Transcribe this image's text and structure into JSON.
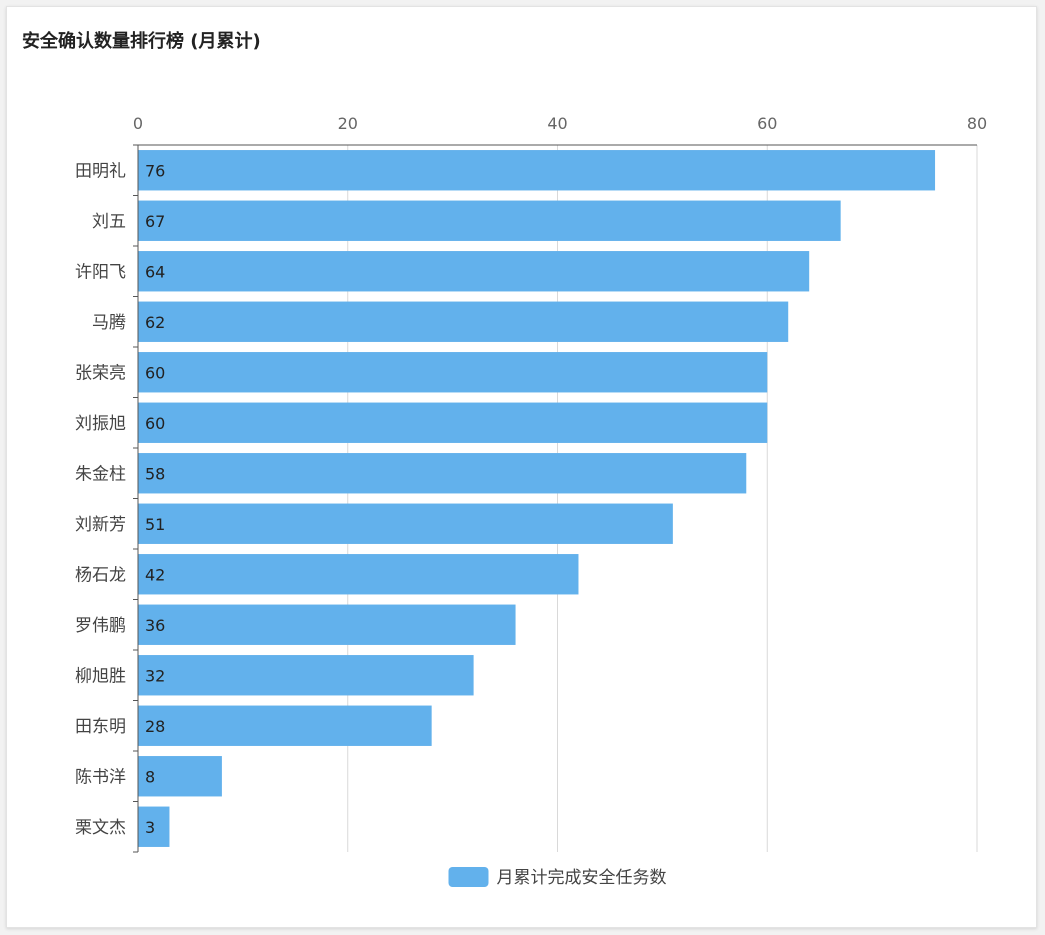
{
  "title": "安全确认数量排行榜 (月累计)",
  "chart_data": {
    "type": "bar",
    "orientation": "horizontal",
    "categories": [
      "田明礼",
      "刘五",
      "许阳飞",
      "马腾",
      "张荣亮",
      "刘振旭",
      "朱金柱",
      "刘新芳",
      "杨石龙",
      "罗伟鹏",
      "柳旭胜",
      "田东明",
      "陈书洋",
      "栗文杰"
    ],
    "series": [
      {
        "name": "月累计完成安全任务数",
        "values": [
          76,
          67,
          64,
          62,
          60,
          60,
          58,
          51,
          42,
          36,
          32,
          28,
          8,
          3
        ],
        "color": "#62b1ec"
      }
    ],
    "xlim": [
      0,
      80
    ],
    "xticks": [
      "0",
      "20",
      "40",
      "60",
      "80"
    ],
    "x_axis_position": "top",
    "grid": true,
    "legend_position": "bottom-center",
    "data_labels": true
  }
}
